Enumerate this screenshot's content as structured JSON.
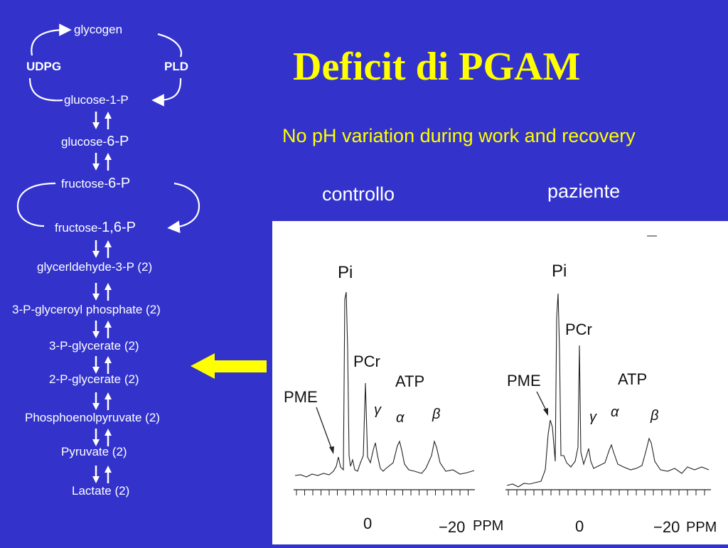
{
  "title": "Deficit di PGAM",
  "subtitle": "No pH variation during work and recovery",
  "labels": {
    "control": "controllo",
    "patient": "paziente"
  },
  "pathway": {
    "glycogen": "glycogen",
    "udpg": "UDPG",
    "pld": "PLD",
    "g1p": "glucose-1-P",
    "g6p_prefix": "glucose-",
    "g6p_suffix": "6-P",
    "f6p_prefix": "fructose-",
    "f6p_suffix": "6-P",
    "fbp_prefix": "fructose-",
    "fbp_suffix": "1,6-P",
    "steps": [
      "glycerldehyde-3-P (2)",
      "3-P-glyceroyl phosphate (2)",
      "3-P-glycerate (2)",
      "2-P-glycerate (2)",
      "Phosphoenolpyruvate (2)",
      "Pyruvate (2)",
      "Lactate (2)"
    ]
  },
  "spectrum_labels": {
    "pi": "Pi",
    "pcr": "PCr",
    "atp": "ATP",
    "pme": "PME",
    "gamma": "γ",
    "alpha": "α",
    "beta": "β",
    "zero": "0",
    "minus20": "−20",
    "ppm": "PPM"
  },
  "colors": {
    "background": "#3333cc",
    "title": "#ffff00",
    "pointer_arrow": "#ffff00"
  }
}
